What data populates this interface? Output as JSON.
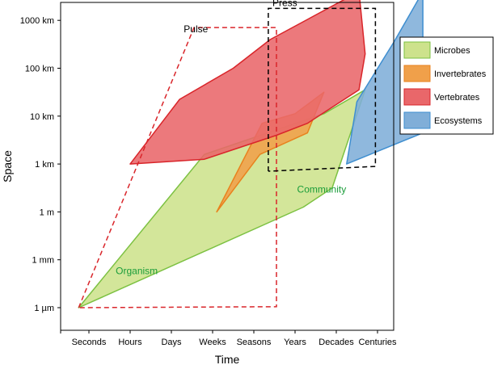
{
  "chart_data": {
    "type": "area",
    "xlabel": "Time",
    "ylabel": "Space",
    "x_ticks": [
      "Seconds",
      "Hours",
      "Days",
      "Weeks",
      "Seasons",
      "Years",
      "Decades",
      "Centuries"
    ],
    "y_ticks": [
      "1 µm",
      "1 mm",
      "1 m",
      "1 km",
      "10 km",
      "100 km",
      "1000 km"
    ],
    "legend": {
      "position": "right"
    },
    "grid": false,
    "series": [
      {
        "name": "Microbes",
        "color": "#cde28c",
        "stroke": "#7cc142",
        "points": [
          [
            -0.25,
            0.0
          ],
          [
            2.8,
            3.2
          ],
          [
            5.7,
            4.05
          ],
          [
            6.7,
            4.55
          ],
          [
            5.9,
            2.5
          ],
          [
            5.2,
            2.1
          ],
          [
            -0.25,
            0.0
          ]
        ]
      },
      {
        "name": "Invertebrates",
        "color": "#f0a04a",
        "stroke": "#e8821e",
        "points": [
          [
            3.1,
            2.0
          ],
          [
            4.2,
            3.85
          ],
          [
            5.0,
            4.05
          ],
          [
            5.7,
            4.5
          ],
          [
            5.3,
            3.65
          ],
          [
            4.15,
            3.2
          ],
          [
            3.1,
            2.0
          ]
        ]
      },
      {
        "name": "Vertebrates",
        "color": "#e9676a",
        "stroke": "#d9252a",
        "points": [
          [
            1.0,
            3.0
          ],
          [
            2.2,
            4.35
          ],
          [
            3.5,
            5.0
          ],
          [
            4.4,
            5.6
          ],
          [
            6.55,
            6.6
          ],
          [
            6.7,
            5.3
          ],
          [
            6.55,
            4.55
          ],
          [
            5.3,
            3.85
          ],
          [
            4.55,
            3.6
          ],
          [
            2.8,
            3.1
          ],
          [
            1.0,
            3.0
          ]
        ]
      },
      {
        "name": "Ecosystems",
        "color": "#80aed8",
        "stroke": "#3e8ed0",
        "points": [
          [
            6.25,
            3.0
          ],
          [
            6.5,
            4.3
          ],
          [
            7.4,
            5.55
          ],
          [
            8.1,
            6.6
          ],
          [
            8.1,
            3.65
          ],
          [
            6.25,
            3.0
          ]
        ]
      }
    ],
    "annotations": [
      {
        "text": "Pulse",
        "color": "#000000",
        "x": 2.3,
        "y": 5.75
      },
      {
        "text": "Press",
        "color": "#000000",
        "x": 4.45,
        "y": 6.3
      },
      {
        "text": "Community",
        "color": "#1a9d3a",
        "x": 5.05,
        "y": 2.4
      },
      {
        "text": "Organism",
        "color": "#1a9d3a",
        "x": 0.65,
        "y": 0.7
      }
    ],
    "dashed_regions": [
      {
        "name": "Pulse",
        "color": "#d9252a",
        "points": [
          [
            -0.25,
            0.0
          ],
          [
            2.55,
            5.85
          ],
          [
            4.55,
            5.85
          ],
          [
            4.55,
            0.02
          ],
          [
            -0.25,
            0.0
          ]
        ]
      },
      {
        "name": "Press",
        "color": "#000000",
        "points": [
          [
            4.35,
            2.85
          ],
          [
            4.35,
            6.25
          ],
          [
            6.95,
            6.25
          ],
          [
            6.95,
            2.95
          ],
          [
            4.35,
            2.85
          ]
        ]
      }
    ]
  }
}
